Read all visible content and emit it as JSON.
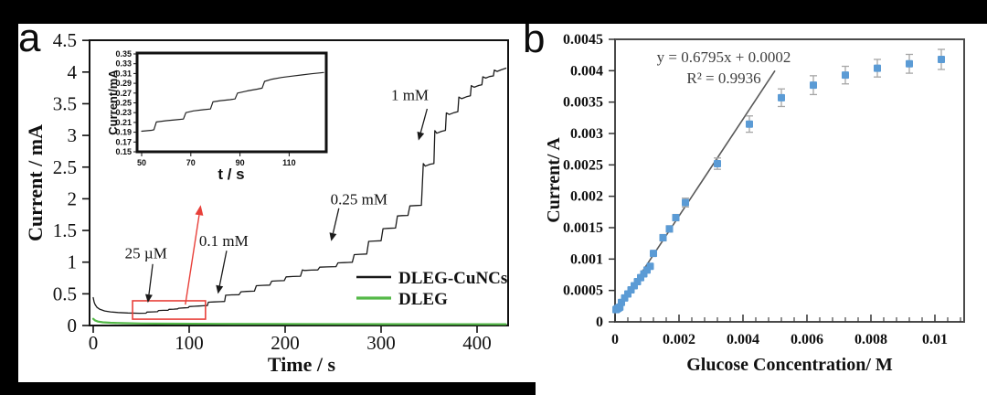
{
  "figure": {
    "background": "#000000",
    "panel_labels": {
      "a": "a",
      "b": "b"
    }
  },
  "chart_data": [
    {
      "panel": "a",
      "type": "line",
      "title": "",
      "xlabel": "Time / s",
      "ylabel": "Current / mA",
      "xlim": [
        0,
        432
      ],
      "ylim": [
        0,
        4.5
      ],
      "xticks": [
        0,
        100,
        200,
        300,
        400
      ],
      "xticklabels": [
        "0",
        "100",
        "200",
        "300",
        "400"
      ],
      "yticks": [
        0,
        0.5,
        1,
        1.5,
        2,
        2.5,
        3,
        3.5,
        4,
        4.5
      ],
      "yticklabels": [
        "0",
        "0.5",
        "1",
        "1.5",
        "2",
        "2.5",
        "3",
        "3.5",
        "4",
        "4.5"
      ],
      "grid": false,
      "legend_position": "right-middle",
      "series": [
        {
          "name": "DLEG-CuNCs",
          "color": "#1a1a1a",
          "points": [
            [
              0,
              0.44
            ],
            [
              1,
              0.37
            ],
            [
              2,
              0.33
            ],
            [
              4,
              0.285
            ],
            [
              7,
              0.255
            ],
            [
              12,
              0.23
            ],
            [
              18,
              0.215
            ],
            [
              26,
              0.205
            ],
            [
              36,
              0.198
            ],
            [
              48,
              0.194
            ],
            [
              55,
              0.195
            ],
            [
              56,
              0.212
            ],
            [
              62,
              0.215
            ],
            [
              67,
              0.218
            ],
            [
              68,
              0.236
            ],
            [
              73,
              0.239
            ],
            [
              78,
              0.241
            ],
            [
              79,
              0.256
            ],
            [
              84,
              0.259
            ],
            [
              88,
              0.262
            ],
            [
              89,
              0.273
            ],
            [
              95,
              0.278
            ],
            [
              99,
              0.282
            ],
            [
              100,
              0.298
            ],
            [
              105,
              0.303
            ],
            [
              110,
              0.307
            ],
            [
              115,
              0.311
            ],
            [
              119,
              0.315
            ],
            [
              120,
              0.368
            ],
            [
              126,
              0.372
            ],
            [
              133,
              0.376
            ],
            [
              137,
              0.379
            ],
            [
              138,
              0.478
            ],
            [
              144,
              0.483
            ],
            [
              152,
              0.487
            ],
            [
              154,
              0.533
            ],
            [
              160,
              0.538
            ],
            [
              168,
              0.543
            ],
            [
              170,
              0.628
            ],
            [
              176,
              0.633
            ],
            [
              184,
              0.638
            ],
            [
              186,
              0.7
            ],
            [
              192,
              0.705
            ],
            [
              199,
              0.709
            ],
            [
              201,
              0.768
            ],
            [
              208,
              0.773
            ],
            [
              216,
              0.778
            ],
            [
              218,
              0.878
            ],
            [
              220,
              0.868
            ],
            [
              227,
              0.874
            ],
            [
              234,
              0.878
            ],
            [
              236,
              0.92
            ],
            [
              244,
              0.925
            ],
            [
              253,
              0.929
            ],
            [
              255,
              0.988
            ],
            [
              262,
              0.993
            ],
            [
              270,
              0.998
            ],
            [
              272,
              1.118
            ],
            [
              278,
              1.124
            ],
            [
              285,
              1.128
            ],
            [
              287,
              1.328
            ],
            [
              293,
              1.334
            ],
            [
              300,
              1.338
            ],
            [
              302,
              1.528
            ],
            [
              308,
              1.534
            ],
            [
              315,
              1.538
            ],
            [
              317,
              1.728
            ],
            [
              322,
              1.734
            ],
            [
              328,
              1.738
            ],
            [
              330,
              1.888
            ],
            [
              336,
              1.893
            ],
            [
              342,
              1.897
            ],
            [
              344,
              2.555
            ],
            [
              346,
              2.515
            ],
            [
              351,
              2.545
            ],
            [
              355,
              2.555
            ],
            [
              356,
              3.075
            ],
            [
              358,
              3.035
            ],
            [
              363,
              3.065
            ],
            [
              367,
              3.08
            ],
            [
              368,
              3.355
            ],
            [
              371,
              3.33
            ],
            [
              376,
              3.36
            ],
            [
              380,
              3.375
            ],
            [
              381,
              3.605
            ],
            [
              384,
              3.58
            ],
            [
              389,
              3.61
            ],
            [
              393,
              3.625
            ],
            [
              394,
              3.785
            ],
            [
              397,
              3.76
            ],
            [
              402,
              3.79
            ],
            [
              405,
              3.8
            ],
            [
              406,
              3.925
            ],
            [
              409,
              3.905
            ],
            [
              413,
              3.93
            ],
            [
              417,
              3.94
            ],
            [
              418,
              4.03
            ],
            [
              421,
              4.01
            ],
            [
              425,
              4.035
            ],
            [
              430,
              4.06
            ]
          ]
        },
        {
          "name": "DLEG",
          "color": "#54b948",
          "points": [
            [
              0,
              0.105
            ],
            [
              2,
              0.08
            ],
            [
              5,
              0.062
            ],
            [
              10,
              0.05
            ],
            [
              18,
              0.043
            ],
            [
              30,
              0.037
            ],
            [
              50,
              0.032
            ],
            [
              80,
              0.029
            ],
            [
              130,
              0.026
            ],
            [
              200,
              0.024
            ],
            [
              300,
              0.022
            ],
            [
              430,
              0.02
            ]
          ]
        }
      ],
      "annotations": [
        {
          "label": "25 µM",
          "text_at": [
            55,
            1.15
          ],
          "arrow_from": [
            62,
            0.97
          ],
          "arrow_to": [
            57,
            0.36
          ]
        },
        {
          "label": "0.1 mM",
          "text_at": [
            136,
            1.34
          ],
          "arrow_from": [
            139,
            1.18
          ],
          "arrow_to": [
            130,
            0.5
          ]
        },
        {
          "label": "0.25 mM",
          "text_at": [
            277,
            2.0
          ],
          "arrow_from": [
            256,
            1.85
          ],
          "arrow_to": [
            248,
            1.33
          ]
        },
        {
          "label": "1 mM",
          "text_at": [
            330,
            3.64
          ],
          "arrow_from": [
            348,
            3.42
          ],
          "arrow_to": [
            339,
            2.92
          ]
        }
      ],
      "highlight_box": {
        "color": "#e8403a",
        "x": [
          41,
          117
        ],
        "y": [
          0.1,
          0.39
        ],
        "arrow_from": [
          96,
          0.33
        ],
        "arrow_to": [
          112,
          1.9
        ]
      },
      "inset": {
        "xlabel": "t / s",
        "ylabel": "Current/mA",
        "xlim": [
          48,
          125
        ],
        "ylim": [
          0.15,
          0.35
        ],
        "xticks": [
          50,
          70,
          90,
          110
        ],
        "xticklabels": [
          "50",
          "70",
          "90",
          "110"
        ],
        "yticks": [
          0.35,
          0.33,
          0.31,
          0.29,
          0.27,
          0.25,
          0.23,
          0.21,
          0.19,
          0.17,
          0.15
        ],
        "yticklabels": [
          "0.35",
          "0.33",
          "0.31",
          "0.29",
          "0.27",
          "0.25",
          "0.23",
          "0.21",
          "0.19",
          "0.17",
          "0.15"
        ],
        "points": [
          [
            50,
            0.192
          ],
          [
            54,
            0.194
          ],
          [
            55,
            0.195
          ],
          [
            56,
            0.211
          ],
          [
            60,
            0.2135
          ],
          [
            64,
            0.2155
          ],
          [
            67,
            0.217
          ],
          [
            68,
            0.23
          ],
          [
            71,
            0.2335
          ],
          [
            75,
            0.236
          ],
          [
            78,
            0.2375
          ],
          [
            79,
            0.252
          ],
          [
            82,
            0.2545
          ],
          [
            86,
            0.2565
          ],
          [
            88,
            0.258
          ],
          [
            89,
            0.27
          ],
          [
            93,
            0.2745
          ],
          [
            97,
            0.278
          ],
          [
            99,
            0.28
          ],
          [
            100,
            0.294
          ],
          [
            103,
            0.2985
          ],
          [
            107,
            0.302
          ],
          [
            111,
            0.3045
          ],
          [
            115,
            0.307
          ],
          [
            119,
            0.3095
          ],
          [
            124,
            0.312
          ]
        ]
      }
    },
    {
      "panel": "b",
      "type": "scatter",
      "title": "",
      "xlabel": "Glucose Concentration/ M",
      "ylabel": "Current/ A",
      "xlim": [
        0,
        0.0112
      ],
      "ylim": [
        0,
        0.0045
      ],
      "xticks": [
        0,
        0.002,
        0.004,
        0.006,
        0.008,
        0.01
      ],
      "xticklabels": [
        "0",
        "0.002",
        "0.004",
        "0.006",
        "0.008",
        "0.01"
      ],
      "minor_xtick_step": 0.0004,
      "yticks": [
        0,
        0.0005,
        0.001,
        0.0015,
        0.002,
        0.0025,
        0.003,
        0.0035,
        0.004,
        0.0045
      ],
      "yticklabels": [
        "0",
        "0.0005",
        "0.001",
        "0.0015",
        "0.002",
        "0.0025",
        "0.003",
        "0.0035",
        "0.004",
        "0.0045"
      ],
      "grid": false,
      "equation": "y = 0.6795x + 0.0002",
      "r_squared": "R² = 0.9936",
      "marker_color": "#5b9bd5",
      "error_color": "#a6a6a6",
      "fit_line": {
        "color": "#595959",
        "from": [
          0.0001,
          0.00022
        ],
        "to": [
          0.005,
          0.004
        ]
      },
      "points": [
        [
          3e-05,
          0.000195,
          0
        ],
        [
          6e-05,
          0.000205,
          0
        ],
        [
          9e-05,
          0.000215,
          0
        ],
        [
          0.00012,
          0.000225,
          0
        ],
        [
          0.00015,
          0.000235,
          0
        ],
        [
          0.0002,
          0.00031,
          0
        ],
        [
          0.0003,
          0.00038,
          0
        ],
        [
          0.0004,
          0.000445,
          0
        ],
        [
          0.0005,
          0.00051,
          0
        ],
        [
          0.0006,
          0.000575,
          0
        ],
        [
          0.0007,
          0.00064,
          0
        ],
        [
          0.0008,
          0.000705,
          0
        ],
        [
          0.0009,
          0.000765,
          0
        ],
        [
          0.001,
          0.000825,
          0
        ],
        [
          0.0011,
          0.000885,
          0
        ],
        [
          0.0012,
          0.00109,
          4e-05
        ],
        [
          0.0015,
          0.00134,
          5e-05
        ],
        [
          0.0017,
          0.00148,
          5e-05
        ],
        [
          0.0019,
          0.00166,
          5e-05
        ],
        [
          0.0022,
          0.0019,
          7e-05
        ],
        [
          0.0032,
          0.00252,
          9e-05
        ],
        [
          0.0042,
          0.00315,
          0.00013
        ],
        [
          0.0052,
          0.00357,
          0.00014
        ],
        [
          0.0062,
          0.00377,
          0.00015
        ],
        [
          0.0072,
          0.00393,
          0.00014
        ],
        [
          0.0082,
          0.00404,
          0.00014
        ],
        [
          0.0092,
          0.00411,
          0.00015
        ],
        [
          0.0102,
          0.00418,
          0.00016
        ]
      ]
    }
  ]
}
